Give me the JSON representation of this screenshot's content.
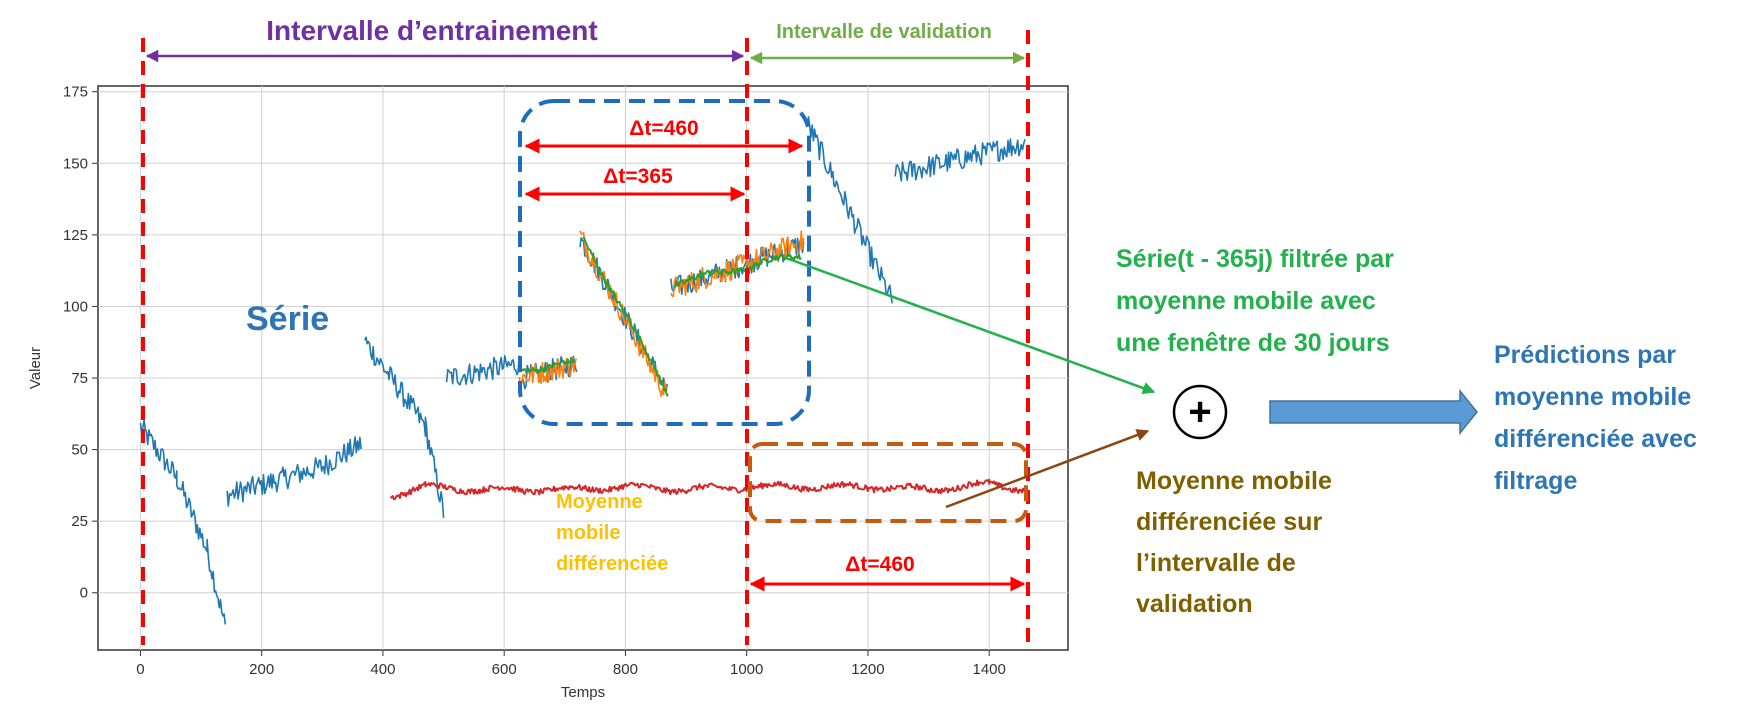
{
  "chart_data": {
    "type": "line",
    "xlabel": "Temps",
    "ylabel": "Valeur",
    "xlim": [
      -70,
      1530
    ],
    "ylim": [
      -20,
      177
    ],
    "xticks": [
      0,
      200,
      400,
      600,
      800,
      1000,
      1200,
      1400
    ],
    "yticks": [
      0,
      25,
      50,
      75,
      100,
      125,
      150,
      175
    ],
    "grid": true,
    "series": [
      {
        "name": "Série",
        "color": "#1f77b4",
        "noise": 4,
        "segments": [
          [
            [
              0,
              58
            ],
            [
              60,
              40
            ],
            [
              110,
              15
            ],
            [
              140,
              -12
            ]
          ],
          [
            [
              143,
              34
            ],
            [
              300,
              44
            ],
            [
              365,
              52
            ]
          ],
          [
            [
              370,
              88
            ],
            [
              470,
              58
            ],
            [
              500,
              28
            ]
          ],
          [
            [
              505,
              75
            ],
            [
              625,
              80
            ]
          ],
          [
            [
              630,
              75
            ],
            [
              720,
              80
            ]
          ],
          [
            [
              725,
              124
            ],
            [
              870,
              70
            ]
          ],
          [
            [
              875,
              106
            ],
            [
              1000,
              115
            ],
            [
              1095,
              122
            ]
          ],
          [
            [
              1100,
              164
            ],
            [
              1240,
              102
            ]
          ],
          [
            [
              1245,
              146
            ],
            [
              1460,
              157
            ]
          ]
        ]
      },
      {
        "name": "Série(t - 365j)",
        "color": "#ff7f0e",
        "noise": 4,
        "segments": [
          [
            [
              625,
              75
            ],
            [
              720,
              80
            ]
          ],
          [
            [
              725,
              125
            ],
            [
              870,
              68
            ]
          ],
          [
            [
              875,
              106
            ],
            [
              1000,
              115
            ],
            [
              1095,
              123
            ]
          ]
        ]
      },
      {
        "name": "Série(t - 365j) filtrée par moyenne mobile",
        "color": "#2ca02c",
        "noise": 1,
        "segments": [
          [
            [
              625,
              78
            ],
            [
              715,
              80
            ]
          ],
          [
            [
              730,
              124
            ],
            [
              870,
              70
            ]
          ],
          [
            [
              880,
              108
            ],
            [
              1000,
              114
            ],
            [
              1090,
              118
            ]
          ]
        ]
      },
      {
        "name": "Moyenne mobile différenciée",
        "color": "#d62728",
        "noise": 1,
        "segments": [
          [
            [
              412,
              34
            ],
            [
              470,
              37
            ],
            [
              560,
              36
            ],
            [
              700,
              36
            ],
            [
              800,
              37
            ],
            [
              900,
              36
            ],
            [
              1000,
              37
            ],
            [
              1100,
              37
            ],
            [
              1200,
              37
            ],
            [
              1300,
              36
            ],
            [
              1400,
              38
            ],
            [
              1460,
              36
            ]
          ]
        ]
      }
    ]
  },
  "annotations": {
    "train_interval": "Intervalle d’entrainement",
    "val_interval": "Intervalle de validation",
    "dt460_top": "Δt=460",
    "dt365": "Δt=365",
    "dt460_bottom": "Δt=460",
    "serie_label": "Série",
    "mm_diff_label_lines": [
      "Moyenne",
      "mobile",
      "différenciée"
    ],
    "green_label_lines": [
      "Série(t - 365j) filtrée par",
      "moyenne mobile avec",
      "une fenêtre de 30 jours"
    ],
    "brown_label_lines": [
      "Moyenne mobile",
      "différenciée sur",
      "l’intervalle de",
      "validation"
    ],
    "blue_label_lines": [
      "Prédictions par",
      "moyenne mobile",
      "différenciée avec",
      "filtrage"
    ],
    "plus_symbol": "+"
  },
  "colors": {
    "purple": "#7030a0",
    "green_text": "#70ad47",
    "green_label": "#22b14c",
    "red": "#ff0000",
    "orange_text": "#ffc000",
    "blue_text": "#2e75b6",
    "blue_dash": "#1f6bbf",
    "brown": "#8b4513",
    "brown_dash": "#c55a11",
    "olive_text": "#7f6000"
  }
}
